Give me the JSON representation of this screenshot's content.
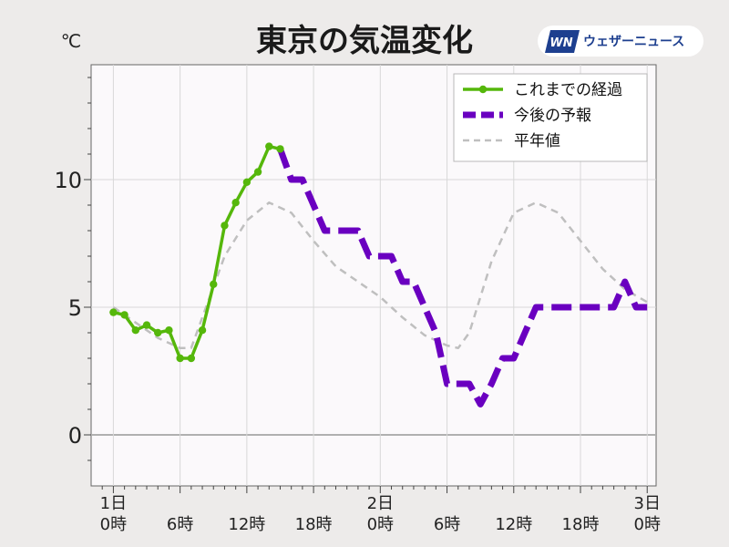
{
  "header": {
    "title": "東京の気温変化",
    "unit": "℃",
    "brand": {
      "mark": "WN",
      "name": "ウェザーニュース"
    }
  },
  "chart_data": {
    "type": "line",
    "title": "東京の気温変化",
    "ylabel": "℃",
    "ylim": [
      -2,
      14.5
    ],
    "xlim": [
      -2,
      48.8
    ],
    "yticks": [
      0,
      5,
      10
    ],
    "ytick_labels": [
      "0",
      "5",
      "10"
    ],
    "xticks": [
      0,
      6,
      12,
      18,
      24,
      30,
      36,
      42,
      48
    ],
    "xtick_labels": [
      [
        "1日",
        "0時"
      ],
      [
        "",
        "6時"
      ],
      [
        "",
        "12時"
      ],
      [
        "",
        "18時"
      ],
      [
        "2日",
        "0時"
      ],
      [
        "",
        "6時"
      ],
      [
        "",
        "12時"
      ],
      [
        "",
        "18時"
      ],
      [
        "3日",
        "0時"
      ]
    ],
    "grid": true,
    "legend_position": "top-right",
    "series": [
      {
        "name": "これまでの経過",
        "color": "#55b70b",
        "style": "solid-markers",
        "x": [
          0,
          1,
          2,
          3,
          4,
          5,
          6,
          7,
          8,
          9,
          10,
          11,
          12,
          13,
          14,
          15
        ],
        "y": [
          4.8,
          4.7,
          4.1,
          4.3,
          4.0,
          4.1,
          3.0,
          3.0,
          4.1,
          5.9,
          8.2,
          9.1,
          9.9,
          10.3,
          11.3,
          11.2
        ]
      },
      {
        "name": "今後の予報",
        "color": "#6a00c0",
        "style": "dashed",
        "x": [
          15,
          16,
          17,
          18,
          19,
          20,
          21,
          22,
          23,
          24,
          25,
          26,
          27,
          28,
          29,
          30,
          31,
          32,
          33,
          34,
          35,
          36,
          37,
          38,
          39,
          40,
          41,
          42,
          43,
          44,
          45,
          46,
          47,
          48
        ],
        "y": [
          11.2,
          10.0,
          10.0,
          9.0,
          8.0,
          8.0,
          8.0,
          8.0,
          7.0,
          7.0,
          7.0,
          6.0,
          6.0,
          5.0,
          4.0,
          2.0,
          2.0,
          2.0,
          1.2,
          2.0,
          3.0,
          3.0,
          4.0,
          5.0,
          5.0,
          5.0,
          5.0,
          5.0,
          5.0,
          5.0,
          5.0,
          6.0,
          5.0,
          5.0
        ]
      },
      {
        "name": "平年値",
        "color": "#bfbfbf",
        "style": "dashed-thin",
        "x": [
          0,
          2,
          4,
          6,
          7,
          8,
          10,
          12,
          14,
          16,
          18,
          20,
          22,
          24,
          26,
          28,
          30,
          31,
          32,
          34,
          36,
          38,
          40,
          42,
          44,
          46,
          48
        ],
        "y": [
          5.0,
          4.4,
          3.8,
          3.4,
          3.4,
          4.6,
          7.0,
          8.4,
          9.1,
          8.7,
          7.6,
          6.6,
          6.0,
          5.4,
          4.6,
          3.9,
          3.5,
          3.4,
          4.0,
          6.8,
          8.7,
          9.1,
          8.7,
          7.6,
          6.5,
          5.7,
          5.2
        ]
      }
    ]
  }
}
